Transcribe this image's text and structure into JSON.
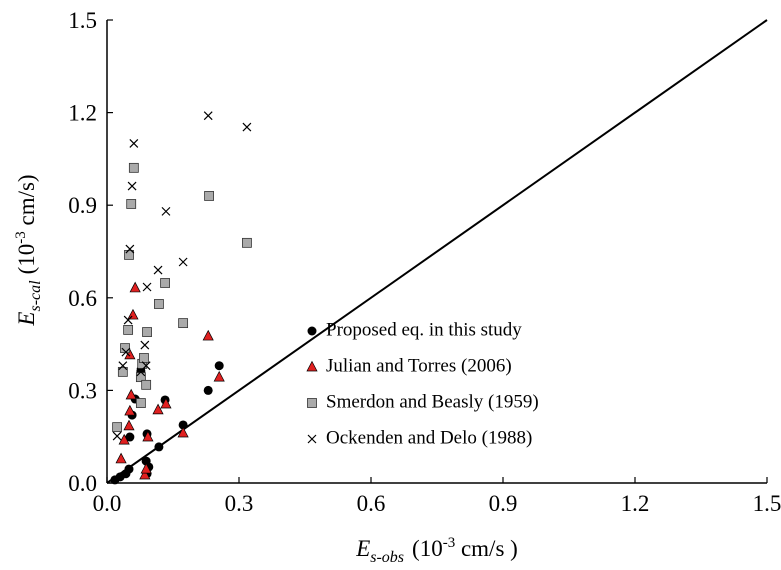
{
  "chart_data": {
    "type": "scatter",
    "xlabel": {
      "symbol": "E",
      "subscript": "s-obs",
      "unit_start": "(10",
      "superscript": "-3",
      "unit_end": " cm/s )"
    },
    "ylabel": {
      "symbol": "E",
      "subscript": "s-cal",
      "unit_start": "(10",
      "superscript": "-3",
      "unit_end": " cm/s)"
    },
    "xlim": [
      0,
      1.5
    ],
    "ylim": [
      0,
      1.5
    ],
    "xticks": [
      {
        "value": 0,
        "label": "0.0"
      },
      0.3,
      0.6,
      0.9,
      1.2,
      1.5
    ],
    "yticks": [
      {
        "value": 0,
        "label": "0.0"
      },
      0.3,
      0.6,
      0.9,
      1.2,
      1.5
    ],
    "identity_line": true,
    "series": [
      {
        "name": "Proposed eq. in this study",
        "marker": "circle",
        "color": "#000000",
        "x": [
          0.018,
          0.03,
          0.043,
          0.05,
          0.052,
          0.057,
          0.064,
          0.077,
          0.091,
          0.089,
          0.091,
          0.095,
          0.118,
          0.132,
          0.173,
          0.23,
          0.255
        ],
        "values": [
          0.01,
          0.02,
          0.03,
          0.045,
          0.149,
          0.22,
          0.272,
          0.363,
          0.03,
          0.071,
          0.159,
          0.052,
          0.117,
          0.269,
          0.188,
          0.3,
          0.38
        ]
      },
      {
        "name": "Julian and Torres (2006)",
        "marker": "triangle",
        "color": "#e02020",
        "x": [
          0.032,
          0.039,
          0.05,
          0.052,
          0.055,
          0.052,
          0.059,
          0.064,
          0.086,
          0.093,
          0.116,
          0.134,
          0.173,
          0.23,
          0.255,
          0.089
        ],
        "values": [
          0.078,
          0.139,
          0.185,
          0.233,
          0.285,
          0.415,
          0.544,
          0.632,
          0.026,
          0.149,
          0.237,
          0.256,
          0.162,
          0.476,
          0.343,
          0.045
        ]
      },
      {
        "name": "Smerdon and Beasly (1959)",
        "marker": "square",
        "color": "#aaaaaa",
        "x": [
          0.023,
          0.036,
          0.041,
          0.048,
          0.05,
          0.055,
          0.061,
          0.077,
          0.08,
          0.084,
          0.089,
          0.091,
          0.077,
          0.118,
          0.132,
          0.173,
          0.232,
          0.318
        ],
        "values": [
          0.181,
          0.36,
          0.437,
          0.496,
          0.739,
          0.904,
          1.021,
          0.343,
          0.386,
          0.405,
          0.318,
          0.489,
          0.259,
          0.58,
          0.648,
          0.518,
          0.93,
          0.778
        ]
      },
      {
        "name": "Ockenden and Delo (1988)",
        "marker": "x",
        "color": "#000000",
        "x": [
          0.023,
          0.036,
          0.043,
          0.048,
          0.052,
          0.057,
          0.061,
          0.077,
          0.086,
          0.091,
          0.089,
          0.134,
          0.116,
          0.173,
          0.23,
          0.318
        ],
        "values": [
          0.152,
          0.38,
          0.424,
          0.528,
          0.758,
          0.962,
          1.1,
          0.36,
          0.447,
          0.635,
          0.38,
          0.88,
          0.69,
          0.716,
          1.19,
          1.153
        ]
      }
    ]
  }
}
